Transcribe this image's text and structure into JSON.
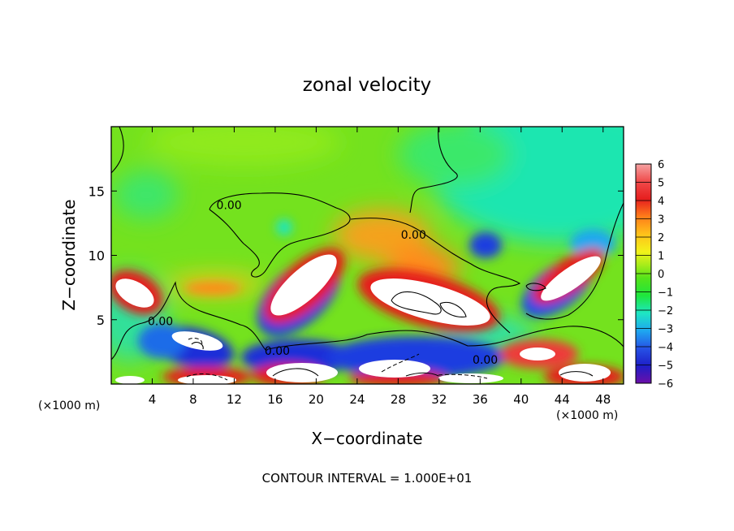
{
  "chart_data": {
    "type": "heatmap",
    "title": "zonal velocity",
    "xlabel": "X−coordinate",
    "ylabel": "Z−coordinate",
    "x_unit_left": "(×1000 m)",
    "x_unit_right": "(×1000 m)",
    "footer": "CONTOUR INTERVAL = 1.000E+01",
    "xlim": [
      0,
      50
    ],
    "ylim": [
      0,
      20
    ],
    "x_ticks": [
      4,
      8,
      12,
      16,
      20,
      24,
      28,
      32,
      36,
      40,
      44,
      48
    ],
    "y_ticks": [
      5,
      10,
      15
    ],
    "colorbar": {
      "min": -6,
      "max": 6,
      "ticks": [
        6,
        5,
        4,
        3,
        2,
        1,
        0,
        -1,
        -2,
        -3,
        -4,
        -5,
        -6
      ],
      "colors": [
        "#f5a3a3",
        "#f04a4a",
        "#e61e1e",
        "#ff7d1a",
        "#ffc21a",
        "#f2f21a",
        "#a8ec1a",
        "#55e31a",
        "#1ee63c",
        "#1ee6c3",
        "#1ea8f0",
        "#2653e6",
        "#1e1ec8",
        "#6b0fa8"
      ]
    },
    "contour_labels": [
      {
        "text": "0.00",
        "x": 11.5,
        "z": 13.9
      },
      {
        "text": "0.00",
        "x": 29.5,
        "z": 11.6
      },
      {
        "text": "0.00",
        "x": 4.8,
        "z": 4.9
      },
      {
        "text": "0.00",
        "x": 16.2,
        "z": 2.6
      },
      {
        "text": "0.00",
        "x": 36.5,
        "z": 1.9
      }
    ],
    "features": [
      {
        "sign": "positive",
        "x": 1.8,
        "z": 7.6,
        "rx": 2.2,
        "rz": 1.1,
        "angle": 30
      },
      {
        "sign": "negative",
        "x": 9.2,
        "z": 3.3,
        "rx": 2.8,
        "rz": 0.9,
        "angle": 12
      },
      {
        "sign": "positive",
        "x": 18.8,
        "z": 7.3,
        "rx": 4.4,
        "rz": 1.5,
        "angle": -42
      },
      {
        "sign": "positive",
        "x": 31.3,
        "z": 6.6,
        "rx": 5.5,
        "rz": 1.6,
        "angle": 15
      },
      {
        "sign": "negative",
        "x": 36.0,
        "z": 10.8,
        "rx": 1.0,
        "rz": 0.9,
        "angle": 0
      },
      {
        "sign": "positive",
        "x": 44.6,
        "z": 8.2,
        "rx": 3.4,
        "rz": 1.0,
        "angle": -35
      },
      {
        "sign": "positive",
        "x": 42.8,
        "z": 2.3,
        "rx": 2.6,
        "rz": 0.8,
        "angle": 0
      },
      {
        "sign": "positive",
        "x": 9.3,
        "z": 0.5,
        "rx": 3.5,
        "rz": 0.5,
        "angle": 0
      },
      {
        "sign": "negative",
        "x": 18.2,
        "z": 1.3,
        "rx": 3.2,
        "rz": 1.0,
        "angle": 0
      },
      {
        "sign": "negative",
        "x": 29.8,
        "z": 1.3,
        "rx": 5.5,
        "rz": 1.0,
        "angle": 0
      },
      {
        "sign": "negative",
        "x": 43.8,
        "z": 0.5,
        "rx": 3.2,
        "rz": 0.5,
        "angle": 0
      }
    ]
  }
}
